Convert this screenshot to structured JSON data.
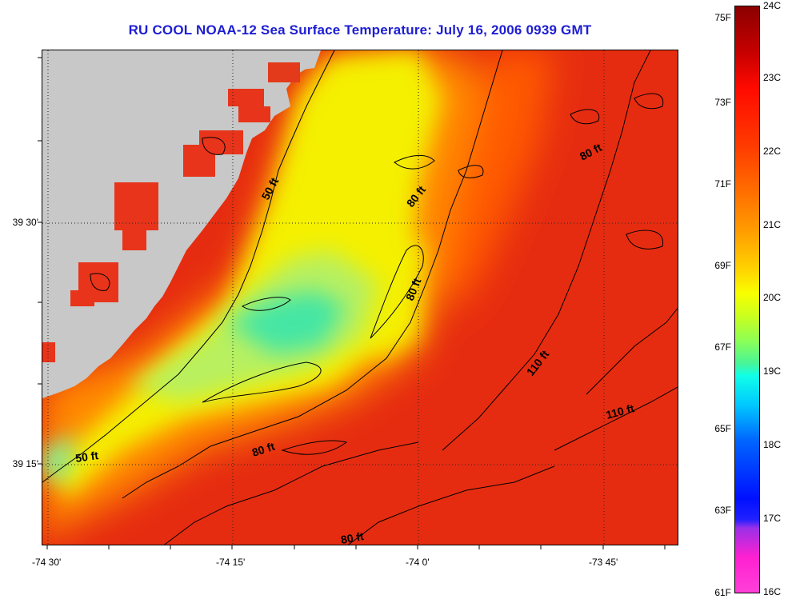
{
  "title": "RU COOL  NOAA-12  Sea Surface Temperature:  July 16, 2006 0939 GMT",
  "axes": {
    "y_ticks": [
      {
        "label": "39 30'",
        "lat": 39.5
      },
      {
        "label": "39 15'",
        "lat": 39.25
      }
    ],
    "x_ticks": [
      {
        "label": "-74 30'",
        "lon": -74.5
      },
      {
        "label": "-74 15'",
        "lon": -74.25
      },
      {
        "label": "-74 0'",
        "lon": -74.0
      },
      {
        "label": "-73 45'",
        "lon": -73.75
      }
    ]
  },
  "contour_labels": [
    {
      "text": "50 ft"
    },
    {
      "text": "50 ft"
    },
    {
      "text": "80 ft"
    },
    {
      "text": "80 ft"
    },
    {
      "text": "80 ft"
    },
    {
      "text": "80 ft"
    },
    {
      "text": "80 ft"
    },
    {
      "text": "110 ft"
    },
    {
      "text": "110 ft"
    }
  ],
  "colorbar": {
    "fahrenheit": [
      "75F",
      "73F",
      "71F",
      "69F",
      "67F",
      "65F",
      "63F",
      "61F"
    ],
    "celsius": [
      "24C",
      "23C",
      "22C",
      "21C",
      "20C",
      "19C",
      "18C",
      "17C",
      "16C"
    ]
  },
  "colors": {
    "land": "#c8c8c8",
    "title": "#1d1dd4",
    "warm": "#e32b12",
    "cool": "#34e8b4"
  }
}
